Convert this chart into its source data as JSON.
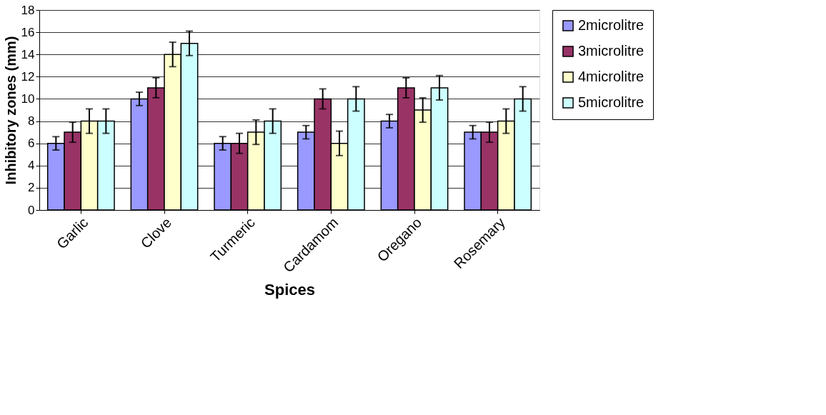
{
  "chart_data": {
    "type": "bar",
    "xlabel": "Spices",
    "ylabel": "Inhibitory zones (mm)",
    "categories": [
      "Garlic",
      "Clove",
      "Turmeric",
      "Cardamom",
      "Oregano",
      "Rosemary"
    ],
    "series": [
      {
        "name": "2microlitre",
        "color": "#9999ff",
        "values": [
          6,
          10,
          6,
          7,
          8,
          7
        ],
        "errors": [
          0.6,
          0.6,
          0.6,
          0.6,
          0.6,
          0.6
        ]
      },
      {
        "name": "3microlitre",
        "color": "#993366",
        "values": [
          7,
          11,
          6,
          10,
          11,
          7
        ],
        "errors": [
          0.9,
          0.9,
          0.9,
          0.9,
          0.9,
          0.9
        ]
      },
      {
        "name": "4microlitre",
        "color": "#ffffcc",
        "values": [
          8,
          14,
          7,
          6,
          9,
          8
        ],
        "errors": [
          1.1,
          1.1,
          1.1,
          1.1,
          1.1,
          1.1
        ]
      },
      {
        "name": "5microlitre",
        "color": "#ccffff",
        "values": [
          8,
          15,
          8,
          10,
          11,
          10
        ],
        "errors": [
          1.1,
          1.1,
          1.1,
          1.1,
          1.1,
          1.1
        ]
      }
    ],
    "ylim": [
      0,
      18
    ],
    "yticks": [
      0,
      2,
      4,
      6,
      8,
      10,
      12,
      14,
      16,
      18
    ],
    "grid": "y",
    "legend": "right"
  }
}
